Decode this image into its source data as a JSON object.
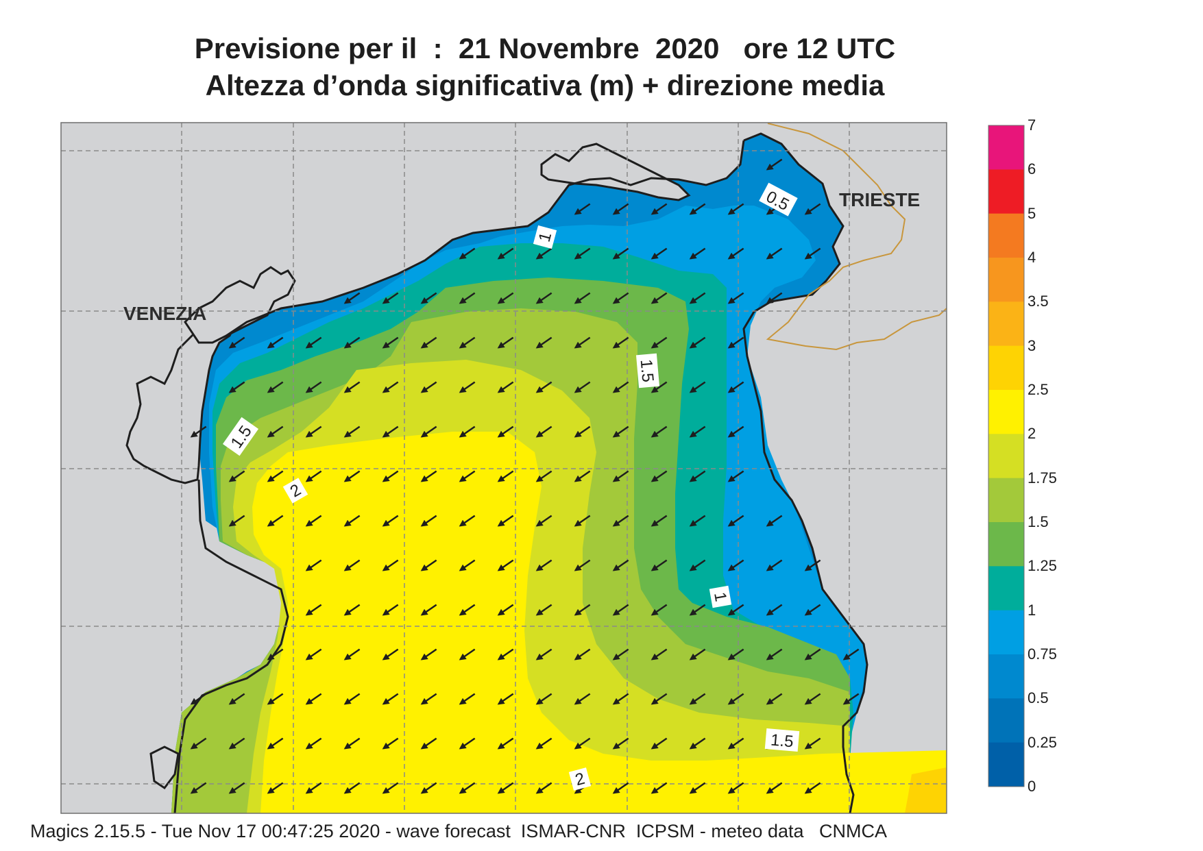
{
  "title": {
    "line1": "Previsione per il  :  21 Novembre  2020   ore 12 UTC",
    "line2": "Altezza d’onda significativa (m) + direzione media"
  },
  "footer": "Magics 2.15.5 - Tue Nov 17 00:47:25 2020 - wave forecast  ISMAR-CNR  ICPSM - meteo data   CNMCA",
  "places": [
    {
      "name": "VENEZIA"
    },
    {
      "name": "TRIESTE"
    }
  ],
  "legend": {
    "levels": [
      "7",
      "6",
      "5",
      "4",
      "3.5",
      "3",
      "2.5",
      "2",
      "1.75",
      "1.5",
      "1.25",
      "1",
      "0.75",
      "0.5",
      "0.25",
      "0"
    ],
    "colors": [
      "#e8157a",
      "#ee1c25",
      "#f47a20",
      "#f7961e",
      "#fbb316",
      "#fed303",
      "#fff100",
      "#d5df23",
      "#a3c93a",
      "#6cb84a",
      "#00ad9b",
      "#009fe3",
      "#0089cf",
      "#0073b8",
      "#0060a8"
    ]
  },
  "contour_labels": [
    "0.5",
    "1",
    "1",
    "1.5",
    "1.5",
    "1.5",
    "2",
    "2"
  ],
  "wave_direction": "towards south-west"
}
